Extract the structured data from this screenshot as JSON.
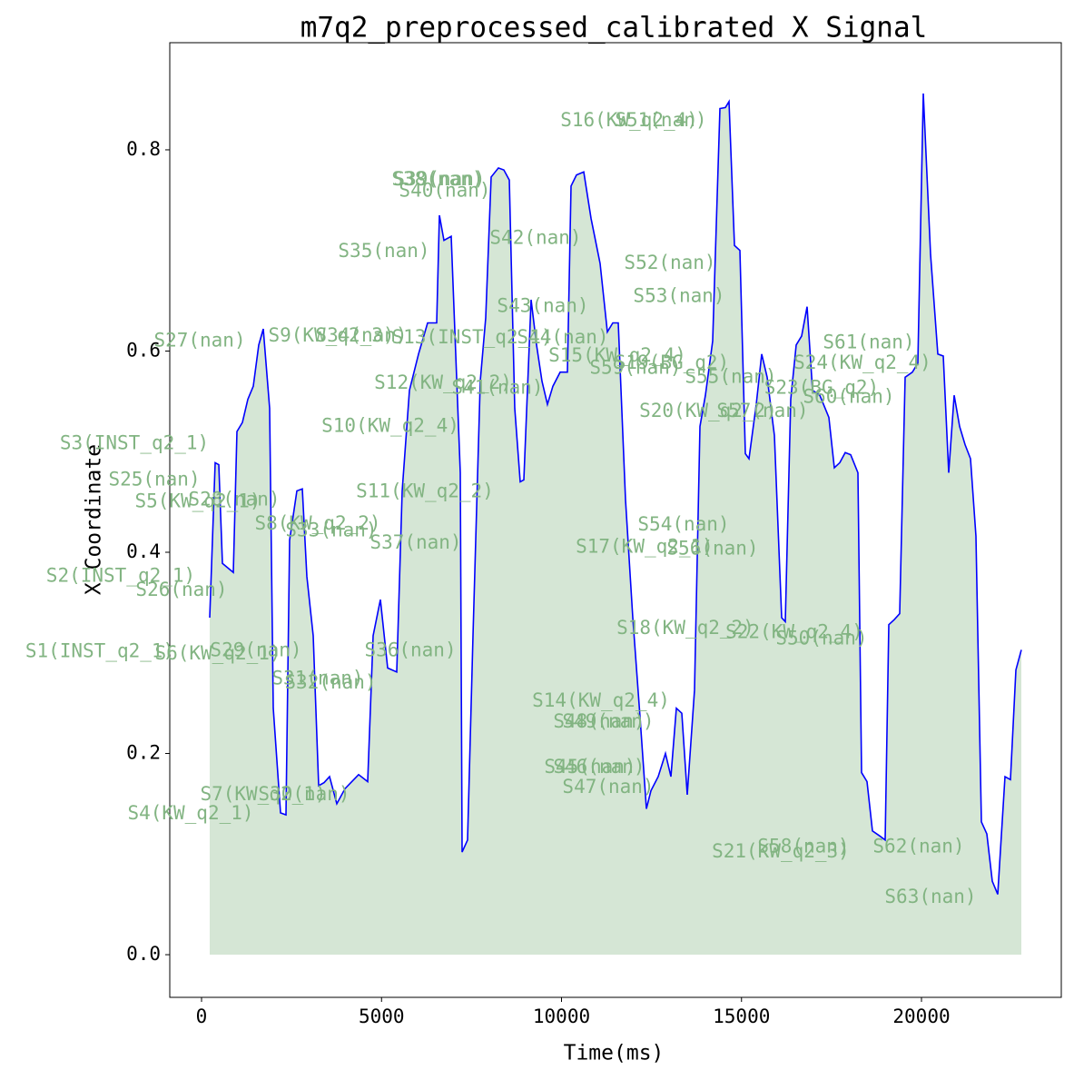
{
  "chart_data": {
    "type": "line",
    "title": "m7q2_preprocessed_calibrated X Signal",
    "x_label": "Time(ms)",
    "y_label": "X Coordinate",
    "xlim": [
      -883,
      23884
    ],
    "ylim": [
      -0.0424,
      0.9065
    ],
    "xticks": [
      0,
      5000,
      10000,
      15000,
      20000
    ],
    "yticks": [
      {
        "value": 0,
        "label": "0.0"
      },
      0.2,
      0.4,
      0.6,
      0.8
    ],
    "fill_color": "#d5e6d5",
    "series": [
      {
        "name": "X",
        "color": "#0000ff",
        "x": [
          227,
          378,
          479,
          580,
          883,
          984,
          1135,
          1286,
          1438,
          1589,
          1715,
          1892,
          1992,
          2194,
          2346,
          2446,
          2648,
          2800,
          2926,
          3102,
          3253,
          3405,
          3556,
          3758,
          3985,
          4363,
          4615,
          4767,
          4968,
          5170,
          5422,
          5574,
          5776,
          6028,
          6280,
          6532,
          6608,
          6734,
          6936,
          7188,
          7238,
          7390,
          7541,
          7743,
          7894,
          8046,
          8247,
          8399,
          8550,
          8701,
          8852,
          8953,
          9155,
          9306,
          9457,
          9609,
          9760,
          9962,
          10164,
          10265,
          10416,
          10618,
          10819,
          10920,
          11072,
          11273,
          11425,
          11576,
          11778,
          11979,
          12181,
          12358,
          12484,
          12686,
          12888,
          13039,
          13191,
          13342,
          13493,
          13695,
          13846,
          13998,
          14199,
          14401,
          14552,
          14653,
          14804,
          14956,
          15107,
          15208,
          15410,
          15561,
          15712,
          15914,
          16116,
          16217,
          16368,
          16520,
          16671,
          16822,
          16973,
          17175,
          17427,
          17579,
          17730,
          17881,
          18032,
          18234,
          18335,
          18487,
          18638,
          18840,
          18991,
          19092,
          19243,
          19395,
          19546,
          19748,
          19899,
          20050,
          20252,
          20454,
          20605,
          20757,
          20908,
          21059,
          21211,
          21362,
          21513,
          21665,
          21816,
          21967,
          22119,
          22320,
          22472,
          22623,
          22774
        ],
        "values": [
          0.335,
          0.489,
          0.487,
          0.389,
          0.38,
          0.52,
          0.529,
          0.552,
          0.565,
          0.606,
          0.622,
          0.543,
          0.245,
          0.141,
          0.139,
          0.412,
          0.461,
          0.463,
          0.376,
          0.317,
          0.168,
          0.171,
          0.177,
          0.15,
          0.165,
          0.179,
          0.172,
          0.317,
          0.353,
          0.285,
          0.281,
          0.461,
          0.561,
          0.597,
          0.628,
          0.628,
          0.735,
          0.71,
          0.714,
          0.479,
          0.102,
          0.114,
          0.317,
          0.57,
          0.633,
          0.773,
          0.782,
          0.78,
          0.77,
          0.543,
          0.47,
          0.472,
          0.651,
          0.606,
          0.57,
          0.547,
          0.565,
          0.579,
          0.579,
          0.764,
          0.775,
          0.778,
          0.732,
          0.714,
          0.687,
          0.619,
          0.628,
          0.628,
          0.452,
          0.335,
          0.236,
          0.145,
          0.163,
          0.177,
          0.2,
          0.177,
          0.245,
          0.24,
          0.159,
          0.263,
          0.525,
          0.556,
          0.61,
          0.841,
          0.842,
          0.848,
          0.705,
          0.7,
          0.498,
          0.493,
          0.547,
          0.597,
          0.574,
          0.516,
          0.335,
          0.331,
          0.552,
          0.606,
          0.615,
          0.644,
          0.561,
          0.556,
          0.534,
          0.484,
          0.489,
          0.499,
          0.497,
          0.479,
          0.181,
          0.172,
          0.123,
          0.118,
          0.114,
          0.328,
          0.333,
          0.339,
          0.574,
          0.579,
          0.588,
          0.856,
          0.696,
          0.597,
          0.595,
          0.479,
          0.556,
          0.525,
          0.507,
          0.493,
          0.416,
          0.132,
          0.12,
          0.073,
          0.06,
          0.177,
          0.174,
          0.283,
          0.303
        ]
      }
    ],
    "annotations": [
      {
        "text": "S16(KW_q2_4)",
        "x": 11880,
        "y": 0.829
      },
      {
        "text": "S51(nan)",
        "x": 12760,
        "y": 0.829
      },
      {
        "text": "S38(nan)",
        "x": 6557,
        "y": 0.77
      },
      {
        "text": "S39(nan)",
        "x": 6608,
        "y": 0.77
      },
      {
        "text": "S40(nan)",
        "x": 6759,
        "y": 0.759
      },
      {
        "text": "S35(nan)",
        "x": 5069,
        "y": 0.699
      },
      {
        "text": "S42(nan)",
        "x": 9281,
        "y": 0.712
      },
      {
        "text": "S52(nan)",
        "x": 13014,
        "y": 0.687
      },
      {
        "text": "S53(nan)",
        "x": 13266,
        "y": 0.654
      },
      {
        "text": "S43(nan)",
        "x": 9483,
        "y": 0.644
      },
      {
        "text": "S27(nan)",
        "x": -50,
        "y": 0.61
      },
      {
        "text": "S9(KW_q2_3)",
        "x": 3606,
        "y": 0.615
      },
      {
        "text": "S34(nan)",
        "x": 4439,
        "y": 0.615
      },
      {
        "text": "S13(INST_q2_1)",
        "x": 7516,
        "y": 0.613
      },
      {
        "text": "S44(nan)",
        "x": 10038,
        "y": 0.613
      },
      {
        "text": "S15(KW_q2_4)",
        "x": 11551,
        "y": 0.595
      },
      {
        "text": "S59(nan)",
        "x": 12055,
        "y": 0.583
      },
      {
        "text": "S19(BG_q2)",
        "x": 13064,
        "y": 0.588
      },
      {
        "text": "S55(nan)",
        "x": 14703,
        "y": 0.574
      },
      {
        "text": "S24(KW_q2_4)",
        "x": 18360,
        "y": 0.588
      },
      {
        "text": "S61(nan)",
        "x": 18537,
        "y": 0.608
      },
      {
        "text": "S23(BG_q2)",
        "x": 17225,
        "y": 0.563
      },
      {
        "text": "S60(nan)",
        "x": 17982,
        "y": 0.554
      },
      {
        "text": "S12(KW_q2_2)",
        "x": 6709,
        "y": 0.568
      },
      {
        "text": "S41(nan)",
        "x": 8222,
        "y": 0.563
      },
      {
        "text": "S20(KW_q2_2)",
        "x": 14073,
        "y": 0.54
      },
      {
        "text": "S57(nan)",
        "x": 15586,
        "y": 0.54
      },
      {
        "text": "S10(KW_q2_4)",
        "x": 5246,
        "y": 0.525
      },
      {
        "text": "S3(INST_q2_1)",
        "x": -1866,
        "y": 0.508
      },
      {
        "text": "S25(nan)",
        "x": -1311,
        "y": 0.472
      },
      {
        "text": "S5(KW_q2_1)",
        "x": -101,
        "y": 0.45
      },
      {
        "text": "S28(nan)",
        "x": 908,
        "y": 0.452
      },
      {
        "text": "S11(KW_q2_2)",
        "x": 6204,
        "y": 0.46
      },
      {
        "text": "S8(KW_q2_2)",
        "x": 3228,
        "y": 0.428
      },
      {
        "text": "S33(nan)",
        "x": 3606,
        "y": 0.421
      },
      {
        "text": "S37(nan)",
        "x": 5952,
        "y": 0.409
      },
      {
        "text": "S54(nan)",
        "x": 13392,
        "y": 0.427
      },
      {
        "text": "S17(KW_q2_1)",
        "x": 12307,
        "y": 0.405
      },
      {
        "text": "S56(nan)",
        "x": 14199,
        "y": 0.403
      },
      {
        "text": "S2(INST_q2_1)",
        "x": -2245,
        "y": 0.376
      },
      {
        "text": "S26(nan)",
        "x": -555,
        "y": 0.362
      },
      {
        "text": "S18(KW_q2_2)",
        "x": 13442,
        "y": 0.324
      },
      {
        "text": "S22(KW_q2_4)",
        "x": 16469,
        "y": 0.32
      },
      {
        "text": "S50(nan)",
        "x": 17225,
        "y": 0.314
      },
      {
        "text": "S1(INST_q2_1)",
        "x": -2825,
        "y": 0.301
      },
      {
        "text": "S6(KW_q2_1)",
        "x": 454,
        "y": 0.299
      },
      {
        "text": "S29(nan)",
        "x": 1513,
        "y": 0.302
      },
      {
        "text": "S36(nan)",
        "x": 5801,
        "y": 0.302
      },
      {
        "text": "S32(nan)",
        "x": 3581,
        "y": 0.27
      },
      {
        "text": "S31(nan)",
        "x": 3228,
        "y": 0.274
      },
      {
        "text": "S14(KW_q2_4)",
        "x": 11097,
        "y": 0.252
      },
      {
        "text": "S48(nan)",
        "x": 11046,
        "y": 0.231
      },
      {
        "text": "S49(nan)",
        "x": 11299,
        "y": 0.231
      },
      {
        "text": "S45(nan)",
        "x": 10794,
        "y": 0.186
      },
      {
        "text": "S46(nan)",
        "x": 11046,
        "y": 0.186
      },
      {
        "text": "S47(nan)",
        "x": 11299,
        "y": 0.166
      },
      {
        "text": "S7(KW_q2_1)",
        "x": 1715,
        "y": 0.159
      },
      {
        "text": "S30(nan)",
        "x": 2850,
        "y": 0.159
      },
      {
        "text": "S4(KW_q2_1)",
        "x": -303,
        "y": 0.14
      },
      {
        "text": "S58(nan)",
        "x": 16721,
        "y": 0.107
      },
      {
        "text": "S21(KW_q2_3)",
        "x": 16090,
        "y": 0.102
      },
      {
        "text": "S62(nan)",
        "x": 19924,
        "y": 0.107
      },
      {
        "text": "S63(nan)",
        "x": 20252,
        "y": 0.057
      }
    ]
  }
}
